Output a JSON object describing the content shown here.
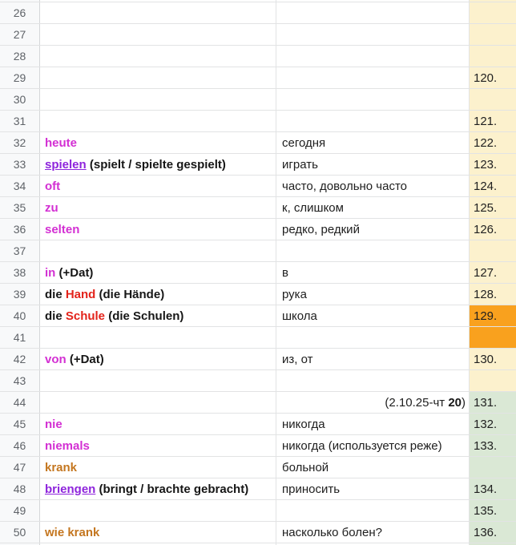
{
  "app": "spreadsheet-vocabulary-list",
  "colors": {
    "yellow_bg": "#fcf1cd",
    "orange_bg": "#f9a11e",
    "green_bg": "#dae8d5",
    "header_bg": "#f8f9fa",
    "grid": "#e2e3e4",
    "header_border": "#d5d7d9",
    "magenta": "#d32fd3",
    "purple_link": "#8e24dc",
    "red": "#e3231a",
    "orange_text": "#c4761f",
    "black_text": "#161616",
    "russian_text": "#3a3a3a",
    "row_num": "#5f6368",
    "index_text": "#1f1f1f"
  },
  "columns": {
    "row_header_width": 50,
    "german_width": 295,
    "russian_width": 241,
    "index_width": 58
  },
  "rows": [
    {
      "num": "26",
      "german": [],
      "russian": [],
      "russian_align": "left",
      "index": "",
      "d_bg": "yellow"
    },
    {
      "num": "27",
      "german": [],
      "russian": [],
      "russian_align": "left",
      "index": "",
      "d_bg": "yellow"
    },
    {
      "num": "28",
      "german": [],
      "russian": [],
      "russian_align": "left",
      "index": "",
      "d_bg": "yellow"
    },
    {
      "num": "29",
      "german": [],
      "russian": [],
      "russian_align": "left",
      "index": "120.",
      "d_bg": "yellow"
    },
    {
      "num": "30",
      "german": [],
      "russian": [],
      "russian_align": "left",
      "index": "",
      "d_bg": "yellow"
    },
    {
      "num": "31",
      "german": [],
      "russian": [],
      "russian_align": "left",
      "index": "121.",
      "d_bg": "yellow"
    },
    {
      "num": "32",
      "german": [
        {
          "text": "heute",
          "style": "magenta"
        }
      ],
      "russian": [
        {
          "text": "сегодня",
          "style": "regular"
        }
      ],
      "russian_align": "left",
      "index": "122.",
      "d_bg": "yellow"
    },
    {
      "num": "33",
      "german": [
        {
          "text": "spielen",
          "style": "link"
        },
        {
          "text": " (spielt / spielte gespielt)",
          "style": "black"
        }
      ],
      "russian": [
        {
          "text": "играть",
          "style": "regular"
        }
      ],
      "russian_align": "left",
      "index": "123.",
      "d_bg": "yellow"
    },
    {
      "num": "34",
      "german": [
        {
          "text": "oft",
          "style": "magenta"
        }
      ],
      "russian": [
        {
          "text": "часто, довольно часто",
          "style": "regular"
        }
      ],
      "russian_align": "left",
      "index": "124.",
      "d_bg": "yellow"
    },
    {
      "num": "35",
      "german": [
        {
          "text": "zu",
          "style": "magenta"
        }
      ],
      "russian": [
        {
          "text": "к, слишком",
          "style": "regular"
        }
      ],
      "russian_align": "left",
      "index": "125.",
      "d_bg": "yellow"
    },
    {
      "num": "36",
      "german": [
        {
          "text": "selten",
          "style": "magenta"
        }
      ],
      "russian": [
        {
          "text": "редко, редкий",
          "style": "regular"
        }
      ],
      "russian_align": "left",
      "index": "126.",
      "d_bg": "yellow"
    },
    {
      "num": "37",
      "german": [],
      "russian": [],
      "russian_align": "left",
      "index": "",
      "d_bg": "yellow"
    },
    {
      "num": "38",
      "german": [
        {
          "text": "in",
          "style": "magenta"
        },
        {
          "text": " (+Dat)",
          "style": "black"
        }
      ],
      "russian": [
        {
          "text": "в",
          "style": "regular"
        }
      ],
      "russian_align": "left",
      "index": "127.",
      "d_bg": "yellow"
    },
    {
      "num": "39",
      "german": [
        {
          "text": "die ",
          "style": "black"
        },
        {
          "text": "Hand",
          "style": "red"
        },
        {
          "text": " (die Hände)",
          "style": "black"
        }
      ],
      "russian": [
        {
          "text": "рука",
          "style": "regular"
        }
      ],
      "russian_align": "left",
      "index": "128.",
      "d_bg": "yellow"
    },
    {
      "num": "40",
      "german": [
        {
          "text": "die ",
          "style": "black"
        },
        {
          "text": "Schule",
          "style": "red"
        },
        {
          "text": " (die Schulen)",
          "style": "black"
        }
      ],
      "russian": [
        {
          "text": "школа",
          "style": "regular"
        }
      ],
      "russian_align": "left",
      "index": "129.",
      "d_bg": "orange"
    },
    {
      "num": "41",
      "german": [],
      "russian": [],
      "russian_align": "left",
      "index": "",
      "d_bg": "orange"
    },
    {
      "num": "42",
      "german": [
        {
          "text": "von",
          "style": "magenta"
        },
        {
          "text": " (+Dat)",
          "style": "black"
        }
      ],
      "russian": [
        {
          "text": "из, от",
          "style": "regular"
        }
      ],
      "russian_align": "left",
      "index": "130.",
      "d_bg": "yellow"
    },
    {
      "num": "43",
      "german": [],
      "russian": [],
      "russian_align": "left",
      "index": "",
      "d_bg": "yellow"
    },
    {
      "num": "44",
      "german": [],
      "russian": [
        {
          "text": "(2.10.25-чт ",
          "style": "regular"
        },
        {
          "text": "20",
          "style": "bold"
        },
        {
          "text": ")",
          "style": "regular"
        }
      ],
      "russian_align": "right",
      "index": "131.",
      "d_bg": "green"
    },
    {
      "num": "45",
      "german": [
        {
          "text": "nie",
          "style": "magenta"
        }
      ],
      "russian": [
        {
          "text": "никогда",
          "style": "regular"
        }
      ],
      "russian_align": "left",
      "index": "132.",
      "d_bg": "green"
    },
    {
      "num": "46",
      "german": [
        {
          "text": "niemals",
          "style": "magenta"
        }
      ],
      "russian": [
        {
          "text": "никогда (используется реже)",
          "style": "regular"
        }
      ],
      "russian_align": "left",
      "index": "133.",
      "d_bg": "green"
    },
    {
      "num": "47",
      "german": [
        {
          "text": "krank",
          "style": "orange"
        }
      ],
      "russian": [
        {
          "text": "больной",
          "style": "regular"
        }
      ],
      "russian_align": "left",
      "index": "",
      "d_bg": "green"
    },
    {
      "num": "48",
      "german": [
        {
          "text": "briengen",
          "style": "link"
        },
        {
          "text": " (bringt / brachte gebracht)",
          "style": "black"
        }
      ],
      "russian": [
        {
          "text": "приносить",
          "style": "regular"
        }
      ],
      "russian_align": "left",
      "index": "134.",
      "d_bg": "green"
    },
    {
      "num": "49",
      "german": [],
      "russian": [],
      "russian_align": "left",
      "index": "135.",
      "d_bg": "green"
    },
    {
      "num": "50",
      "german": [
        {
          "text": "wie krank",
          "style": "orange"
        }
      ],
      "russian": [
        {
          "text": "насколько болен?",
          "style": "regular"
        }
      ],
      "russian_align": "left",
      "index": "136.",
      "d_bg": "green"
    }
  ],
  "partial_rows": {
    "top_d_bg": "yellow",
    "bottom_d_bg": "green"
  }
}
